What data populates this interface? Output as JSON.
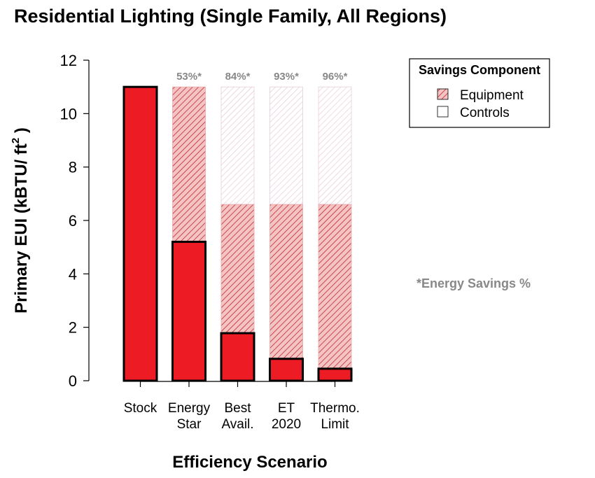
{
  "chart_data": {
    "type": "bar",
    "title": "Residential Lighting (Single Family, All Regions)",
    "xlabel": "Efficiency Scenario",
    "ylabel": "Primary EUI (kBTU/ ft",
    "ylabel_superscript": "2",
    "ylabel_suffix": " )",
    "ylim": [
      0,
      12
    ],
    "yticks": [
      "0",
      "2",
      "4",
      "6",
      "8",
      "10",
      "12"
    ],
    "categories": [
      [
        "Stock"
      ],
      [
        "Energy",
        "Star"
      ],
      [
        "Best",
        "Avail."
      ],
      [
        "ET",
        "2020"
      ],
      [
        "Thermo.",
        "Limit"
      ]
    ],
    "values": [
      11.0,
      5.2,
      1.78,
      0.82,
      0.45
    ],
    "equipment_top": [
      null,
      11.0,
      6.6,
      6.6,
      6.6
    ],
    "controls_top": [
      null,
      null,
      11.0,
      11.0,
      11.0
    ],
    "savings_labels": [
      "",
      "53%*",
      "84%*",
      "93%*",
      "96%*"
    ],
    "legend": {
      "title": "Savings Component",
      "position": "top-right",
      "items": [
        "Equipment",
        "Controls"
      ]
    },
    "note": "*Energy Savings %",
    "grid": false,
    "colors": {
      "bar": "#ed1c24",
      "equipment_hatch": "#c1272d",
      "controls_hatch": "#e8b4c8",
      "savings_text": "#888888",
      "note_text": "#888888"
    }
  }
}
